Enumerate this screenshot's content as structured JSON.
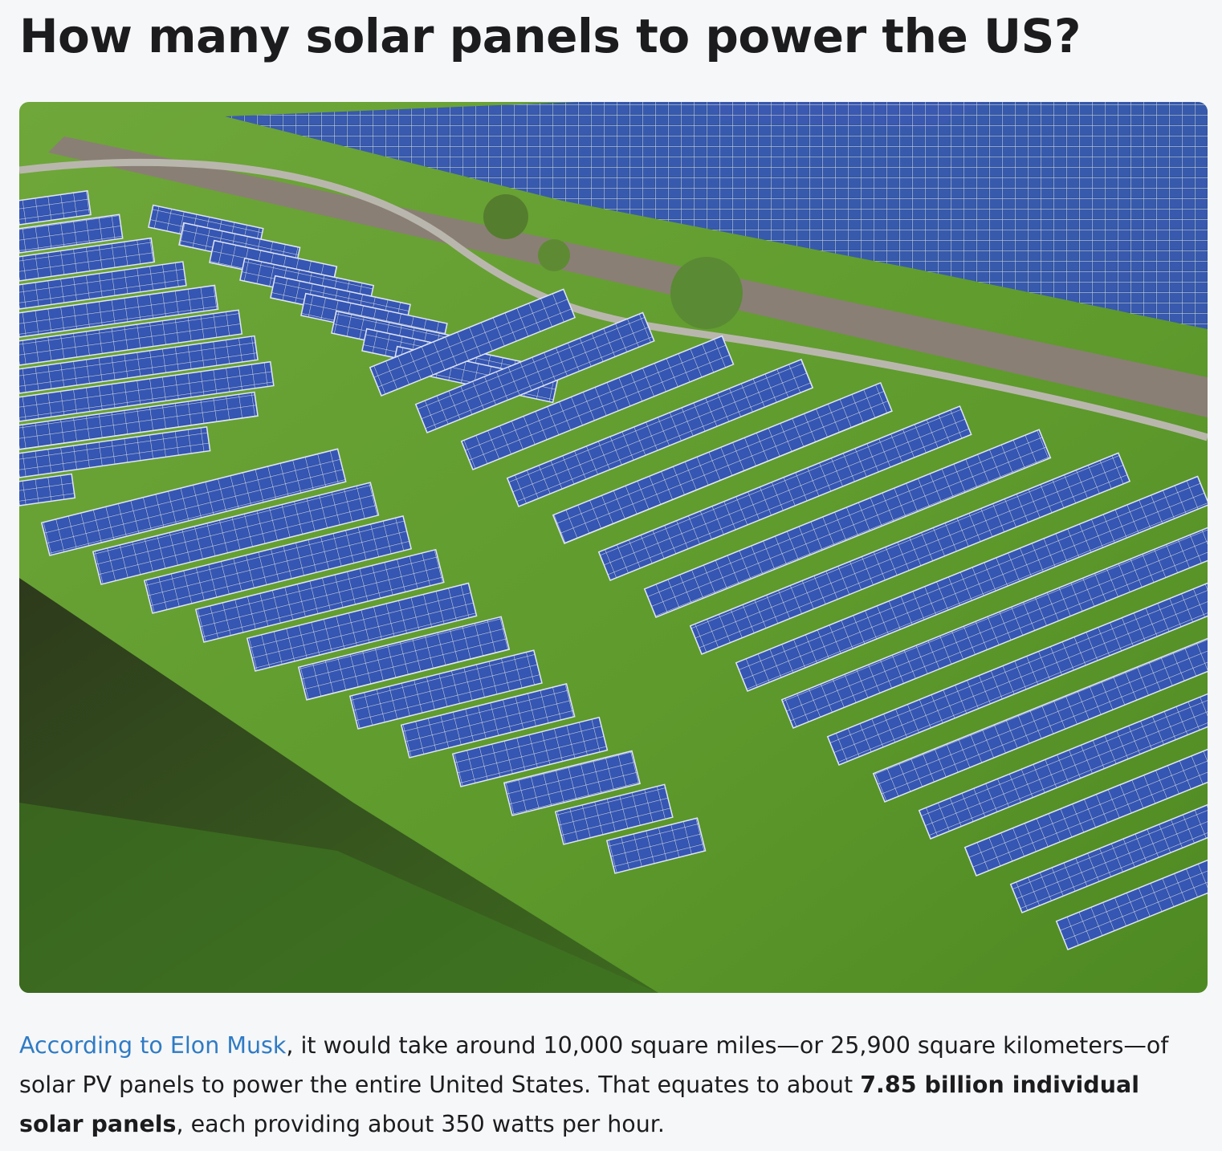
{
  "article": {
    "title": "How many solar panels to power the US?",
    "paragraph": {
      "link": "According to Elon Musk",
      "text_1": ", it would take around 10,000 square miles—or 25,900 square kilometers—of solar PV panels to power the entire United States. That equates to about ",
      "bold": "7.85 billion individual solar panels",
      "text_2": ", each providing about 350 watts per hour."
    }
  }
}
